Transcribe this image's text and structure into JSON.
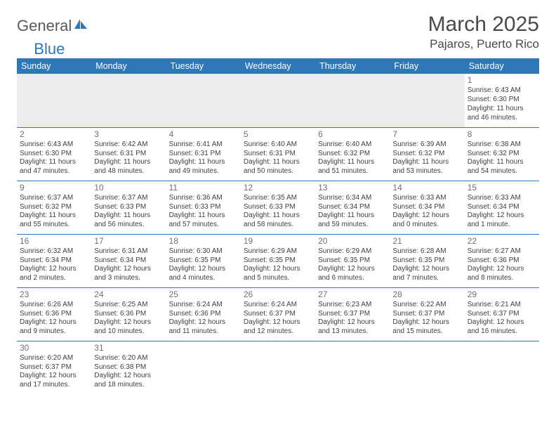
{
  "logo": {
    "word1": "General",
    "word2": "Blue",
    "sail_color": "#2e77b8",
    "text_color": "#5a5a5a"
  },
  "title": {
    "month": "March 2025",
    "location": "Pajaros, Puerto Rico"
  },
  "colors": {
    "header_bg": "#2e77b8",
    "header_text": "#ffffff",
    "border": "#2e77b8",
    "empty_bg": "#ececec",
    "body_text": "#404040",
    "daynum_text": "#707070",
    "title_text": "#4a4a4a"
  },
  "weekdays": [
    "Sunday",
    "Monday",
    "Tuesday",
    "Wednesday",
    "Thursday",
    "Friday",
    "Saturday"
  ],
  "weeks": [
    [
      null,
      null,
      null,
      null,
      null,
      null,
      {
        "n": "1",
        "sunrise": "Sunrise: 6:43 AM",
        "sunset": "Sunset: 6:30 PM",
        "daylight": "Daylight: 11 hours and 46 minutes."
      }
    ],
    [
      {
        "n": "2",
        "sunrise": "Sunrise: 6:43 AM",
        "sunset": "Sunset: 6:30 PM",
        "daylight": "Daylight: 11 hours and 47 minutes."
      },
      {
        "n": "3",
        "sunrise": "Sunrise: 6:42 AM",
        "sunset": "Sunset: 6:31 PM",
        "daylight": "Daylight: 11 hours and 48 minutes."
      },
      {
        "n": "4",
        "sunrise": "Sunrise: 6:41 AM",
        "sunset": "Sunset: 6:31 PM",
        "daylight": "Daylight: 11 hours and 49 minutes."
      },
      {
        "n": "5",
        "sunrise": "Sunrise: 6:40 AM",
        "sunset": "Sunset: 6:31 PM",
        "daylight": "Daylight: 11 hours and 50 minutes."
      },
      {
        "n": "6",
        "sunrise": "Sunrise: 6:40 AM",
        "sunset": "Sunset: 6:32 PM",
        "daylight": "Daylight: 11 hours and 51 minutes."
      },
      {
        "n": "7",
        "sunrise": "Sunrise: 6:39 AM",
        "sunset": "Sunset: 6:32 PM",
        "daylight": "Daylight: 11 hours and 53 minutes."
      },
      {
        "n": "8",
        "sunrise": "Sunrise: 6:38 AM",
        "sunset": "Sunset: 6:32 PM",
        "daylight": "Daylight: 11 hours and 54 minutes."
      }
    ],
    [
      {
        "n": "9",
        "sunrise": "Sunrise: 6:37 AM",
        "sunset": "Sunset: 6:32 PM",
        "daylight": "Daylight: 11 hours and 55 minutes."
      },
      {
        "n": "10",
        "sunrise": "Sunrise: 6:37 AM",
        "sunset": "Sunset: 6:33 PM",
        "daylight": "Daylight: 11 hours and 56 minutes."
      },
      {
        "n": "11",
        "sunrise": "Sunrise: 6:36 AM",
        "sunset": "Sunset: 6:33 PM",
        "daylight": "Daylight: 11 hours and 57 minutes."
      },
      {
        "n": "12",
        "sunrise": "Sunrise: 6:35 AM",
        "sunset": "Sunset: 6:33 PM",
        "daylight": "Daylight: 11 hours and 58 minutes."
      },
      {
        "n": "13",
        "sunrise": "Sunrise: 6:34 AM",
        "sunset": "Sunset: 6:34 PM",
        "daylight": "Daylight: 11 hours and 59 minutes."
      },
      {
        "n": "14",
        "sunrise": "Sunrise: 6:33 AM",
        "sunset": "Sunset: 6:34 PM",
        "daylight": "Daylight: 12 hours and 0 minutes."
      },
      {
        "n": "15",
        "sunrise": "Sunrise: 6:33 AM",
        "sunset": "Sunset: 6:34 PM",
        "daylight": "Daylight: 12 hours and 1 minute."
      }
    ],
    [
      {
        "n": "16",
        "sunrise": "Sunrise: 6:32 AM",
        "sunset": "Sunset: 6:34 PM",
        "daylight": "Daylight: 12 hours and 2 minutes."
      },
      {
        "n": "17",
        "sunrise": "Sunrise: 6:31 AM",
        "sunset": "Sunset: 6:34 PM",
        "daylight": "Daylight: 12 hours and 3 minutes."
      },
      {
        "n": "18",
        "sunrise": "Sunrise: 6:30 AM",
        "sunset": "Sunset: 6:35 PM",
        "daylight": "Daylight: 12 hours and 4 minutes."
      },
      {
        "n": "19",
        "sunrise": "Sunrise: 6:29 AM",
        "sunset": "Sunset: 6:35 PM",
        "daylight": "Daylight: 12 hours and 5 minutes."
      },
      {
        "n": "20",
        "sunrise": "Sunrise: 6:29 AM",
        "sunset": "Sunset: 6:35 PM",
        "daylight": "Daylight: 12 hours and 6 minutes."
      },
      {
        "n": "21",
        "sunrise": "Sunrise: 6:28 AM",
        "sunset": "Sunset: 6:35 PM",
        "daylight": "Daylight: 12 hours and 7 minutes."
      },
      {
        "n": "22",
        "sunrise": "Sunrise: 6:27 AM",
        "sunset": "Sunset: 6:36 PM",
        "daylight": "Daylight: 12 hours and 8 minutes."
      }
    ],
    [
      {
        "n": "23",
        "sunrise": "Sunrise: 6:26 AM",
        "sunset": "Sunset: 6:36 PM",
        "daylight": "Daylight: 12 hours and 9 minutes."
      },
      {
        "n": "24",
        "sunrise": "Sunrise: 6:25 AM",
        "sunset": "Sunset: 6:36 PM",
        "daylight": "Daylight: 12 hours and 10 minutes."
      },
      {
        "n": "25",
        "sunrise": "Sunrise: 6:24 AM",
        "sunset": "Sunset: 6:36 PM",
        "daylight": "Daylight: 12 hours and 11 minutes."
      },
      {
        "n": "26",
        "sunrise": "Sunrise: 6:24 AM",
        "sunset": "Sunset: 6:37 PM",
        "daylight": "Daylight: 12 hours and 12 minutes."
      },
      {
        "n": "27",
        "sunrise": "Sunrise: 6:23 AM",
        "sunset": "Sunset: 6:37 PM",
        "daylight": "Daylight: 12 hours and 13 minutes."
      },
      {
        "n": "28",
        "sunrise": "Sunrise: 6:22 AM",
        "sunset": "Sunset: 6:37 PM",
        "daylight": "Daylight: 12 hours and 15 minutes."
      },
      {
        "n": "29",
        "sunrise": "Sunrise: 6:21 AM",
        "sunset": "Sunset: 6:37 PM",
        "daylight": "Daylight: 12 hours and 16 minutes."
      }
    ],
    [
      {
        "n": "30",
        "sunrise": "Sunrise: 6:20 AM",
        "sunset": "Sunset: 6:37 PM",
        "daylight": "Daylight: 12 hours and 17 minutes."
      },
      {
        "n": "31",
        "sunrise": "Sunrise: 6:20 AM",
        "sunset": "Sunset: 6:38 PM",
        "daylight": "Daylight: 12 hours and 18 minutes."
      },
      null,
      null,
      null,
      null,
      null
    ]
  ]
}
